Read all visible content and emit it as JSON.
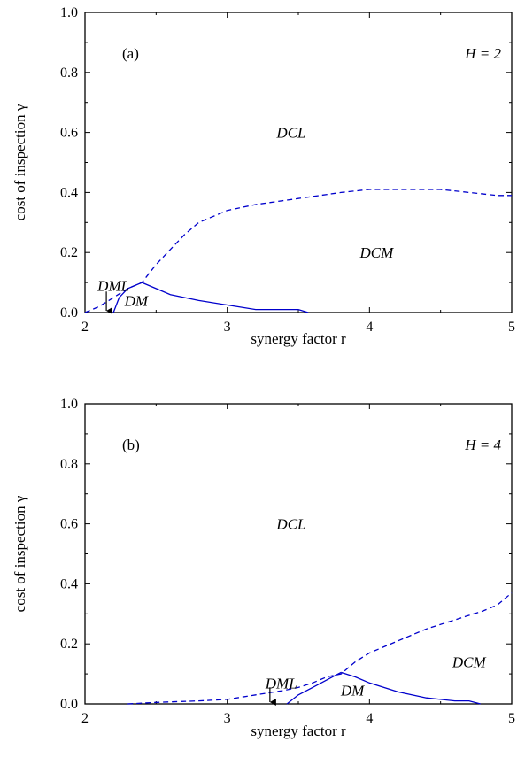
{
  "chart_data": [
    {
      "type": "line",
      "panel_label": "(a)",
      "param_label": "H = 2",
      "xlabel": "synergy factor r",
      "ylabel": "cost of inspection γ",
      "xlim": [
        2,
        5
      ],
      "ylim": [
        0,
        1.0
      ],
      "xticks": [
        "2",
        "3",
        "4",
        "5"
      ],
      "yticks": [
        "0.0",
        "0.2",
        "0.4",
        "0.6",
        "0.8",
        "1.0"
      ],
      "color": "#0000cc",
      "series": [
        {
          "style": "dashed",
          "x": [
            2.0,
            2.1,
            2.2,
            2.3,
            2.4,
            2.5,
            2.6,
            2.7,
            2.8,
            3.0,
            3.2,
            3.5,
            3.8,
            4.0,
            4.3,
            4.5,
            4.7,
            4.9,
            5.0
          ],
          "y": [
            0.0,
            0.02,
            0.05,
            0.08,
            0.1,
            0.16,
            0.21,
            0.26,
            0.3,
            0.34,
            0.36,
            0.38,
            0.4,
            0.41,
            0.41,
            0.41,
            0.4,
            0.39,
            0.39
          ]
        },
        {
          "style": "solid",
          "x": [
            2.2,
            2.24,
            2.3,
            2.4
          ],
          "y": [
            0.0,
            0.05,
            0.08,
            0.1
          ]
        },
        {
          "style": "solid",
          "x": [
            2.4,
            2.5,
            2.6,
            2.8,
            3.0,
            3.2,
            3.5,
            3.57
          ],
          "y": [
            0.1,
            0.08,
            0.06,
            0.04,
            0.025,
            0.01,
            0.01,
            0.0
          ]
        }
      ],
      "regions": [
        {
          "label": "DCL",
          "x": 3.45,
          "y": 0.6
        },
        {
          "label": "DCM",
          "x": 4.05,
          "y": 0.2
        },
        {
          "label": "DML",
          "x": 2.2,
          "y": 0.09
        },
        {
          "label": "DM",
          "x": 2.36,
          "y": 0.04
        }
      ],
      "arrow": {
        "x": 2.15,
        "y_from": 0.07,
        "y_to": 0.0
      }
    },
    {
      "type": "line",
      "panel_label": "(b)",
      "param_label": "H = 4",
      "xlabel": "synergy factor r",
      "ylabel": "cost of inspection γ",
      "xlim": [
        2,
        5
      ],
      "ylim": [
        0,
        1.0
      ],
      "xticks": [
        "2",
        "3",
        "4",
        "5"
      ],
      "yticks": [
        "0.0",
        "0.2",
        "0.4",
        "0.6",
        "0.8",
        "1.0"
      ],
      "color": "#0000cc",
      "series": [
        {
          "style": "dashed",
          "x": [
            2.3,
            2.5,
            2.8,
            3.0,
            3.2,
            3.4,
            3.5,
            3.6,
            3.7,
            3.8,
            3.9,
            4.0,
            4.2,
            4.4,
            4.6,
            4.8,
            4.9,
            5.0
          ],
          "y": [
            0.0,
            0.005,
            0.01,
            0.015,
            0.03,
            0.045,
            0.055,
            0.07,
            0.09,
            0.1,
            0.14,
            0.17,
            0.21,
            0.25,
            0.28,
            0.31,
            0.33,
            0.37
          ]
        },
        {
          "style": "solid",
          "x": [
            3.42,
            3.5,
            3.6,
            3.7,
            3.8
          ],
          "y": [
            0.0,
            0.03,
            0.055,
            0.08,
            0.105
          ]
        },
        {
          "style": "solid",
          "x": [
            3.8,
            3.9,
            4.0,
            4.2,
            4.4,
            4.5,
            4.6,
            4.7,
            4.78
          ],
          "y": [
            0.105,
            0.09,
            0.07,
            0.04,
            0.02,
            0.015,
            0.01,
            0.01,
            0.0
          ]
        }
      ],
      "regions": [
        {
          "label": "DCL",
          "x": 3.45,
          "y": 0.6
        },
        {
          "label": "DCM",
          "x": 4.7,
          "y": 0.14
        },
        {
          "label": "DML",
          "x": 3.38,
          "y": 0.07
        },
        {
          "label": "DM",
          "x": 3.88,
          "y": 0.045
        }
      ],
      "arrow": {
        "x": 3.3,
        "y_from": 0.055,
        "y_to": 0.0
      }
    }
  ]
}
